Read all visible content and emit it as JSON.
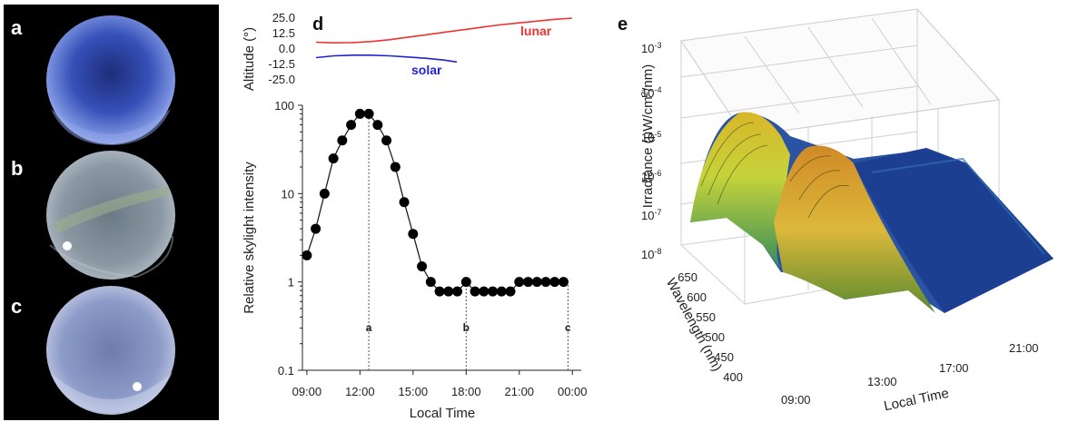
{
  "panels": {
    "a": {
      "letter": "a"
    },
    "b": {
      "letter": "b"
    },
    "c": {
      "letter": "c"
    },
    "d": {
      "letter": "d"
    },
    "e": {
      "letter": "e"
    }
  },
  "colors": {
    "lunar": "#ee3333",
    "solar": "#2222cc",
    "sky_a": "#5a70c8",
    "sky_b": "#8a9aa2",
    "sky_c": "#9aa6cc",
    "photo_bg": "#000000"
  },
  "chart_data": [
    {
      "type": "line",
      "panel": "d-top",
      "ylabel": "Altitude (°)",
      "yticks": [
        "25.0",
        "12.5",
        "0.0",
        "-12.5",
        "-25.0"
      ],
      "ylim": [
        -25,
        25
      ],
      "xlim": [
        9,
        24
      ],
      "series": [
        {
          "name": "lunar",
          "x": [
            9,
            10,
            11,
            12,
            13,
            14,
            15,
            16,
            17,
            18,
            19,
            20,
            21,
            22,
            23
          ],
          "values": [
            5.5,
            5.0,
            5.2,
            6.0,
            7.5,
            9.5,
            11.5,
            13.5,
            15.5,
            17.5,
            19.5,
            21.0,
            22.5,
            24.0,
            25.0
          ]
        },
        {
          "name": "solar",
          "x": [
            9,
            10,
            11,
            12,
            13,
            14,
            15,
            16,
            16.7
          ],
          "values": [
            -7.0,
            -5.5,
            -5.0,
            -5.0,
            -5.5,
            -6.5,
            -7.5,
            -9.0,
            -10.5
          ]
        }
      ]
    },
    {
      "type": "scatter",
      "panel": "d",
      "xlabel": "Local Time",
      "ylabel": "Relative skylight intensity",
      "xticks": [
        "09:00",
        "12:00",
        "15:00",
        "18:00",
        "21:00",
        "00:00"
      ],
      "yticks": [
        "100",
        "10",
        "1",
        "0.1"
      ],
      "yscale": "log",
      "ylim": [
        0.1,
        100
      ],
      "xlim": [
        8.75,
        24.5
      ],
      "x": [
        9,
        9.5,
        10,
        10.5,
        11,
        11.5,
        12,
        12.5,
        13,
        13.5,
        14,
        14.5,
        15,
        15.5,
        16,
        16.5,
        17,
        17.5,
        18,
        18.5,
        19,
        19.5,
        20,
        20.5,
        21,
        21.5,
        22,
        22.5,
        23,
        23.5
      ],
      "values": [
        2,
        4,
        10,
        25,
        40,
        60,
        80,
        80,
        60,
        40,
        20,
        8,
        3.5,
        1.5,
        1.0,
        0.78,
        0.78,
        0.78,
        1.0,
        0.78,
        0.78,
        0.78,
        0.78,
        0.78,
        1.0,
        1.0,
        1.0,
        1.0,
        1.0,
        1.0
      ],
      "markers": [
        {
          "label": "a",
          "x": 12.5
        },
        {
          "label": "b",
          "x": 18
        },
        {
          "label": "c",
          "x": 23.75
        }
      ]
    },
    {
      "type": "surface3d",
      "panel": "e",
      "xlabel": "Local Time",
      "ylabel": "Wavelength (nm)",
      "zlabel_prefix": "Irradiance (",
      "zlabel_mu": "μ",
      "zlabel_mid": "W/cm",
      "zlabel_sup": "2",
      "zlabel_suffix": "/nm)",
      "zscale": "log",
      "zlim": [
        1e-08,
        0.001
      ],
      "zticks": [
        {
          "base": "10",
          "exp": "-3"
        },
        {
          "base": "10",
          "exp": "-4"
        },
        {
          "base": "10",
          "exp": "-5"
        },
        {
          "base": "10",
          "exp": "-6"
        },
        {
          "base": "10",
          "exp": "-7"
        },
        {
          "base": "10",
          "exp": "-8"
        }
      ],
      "wavelength_ticks": [
        "650",
        "600",
        "550",
        "500",
        "450",
        "400"
      ],
      "time_ticks": [
        "09:00",
        "13:00",
        "17:00",
        "21:00"
      ]
    }
  ]
}
